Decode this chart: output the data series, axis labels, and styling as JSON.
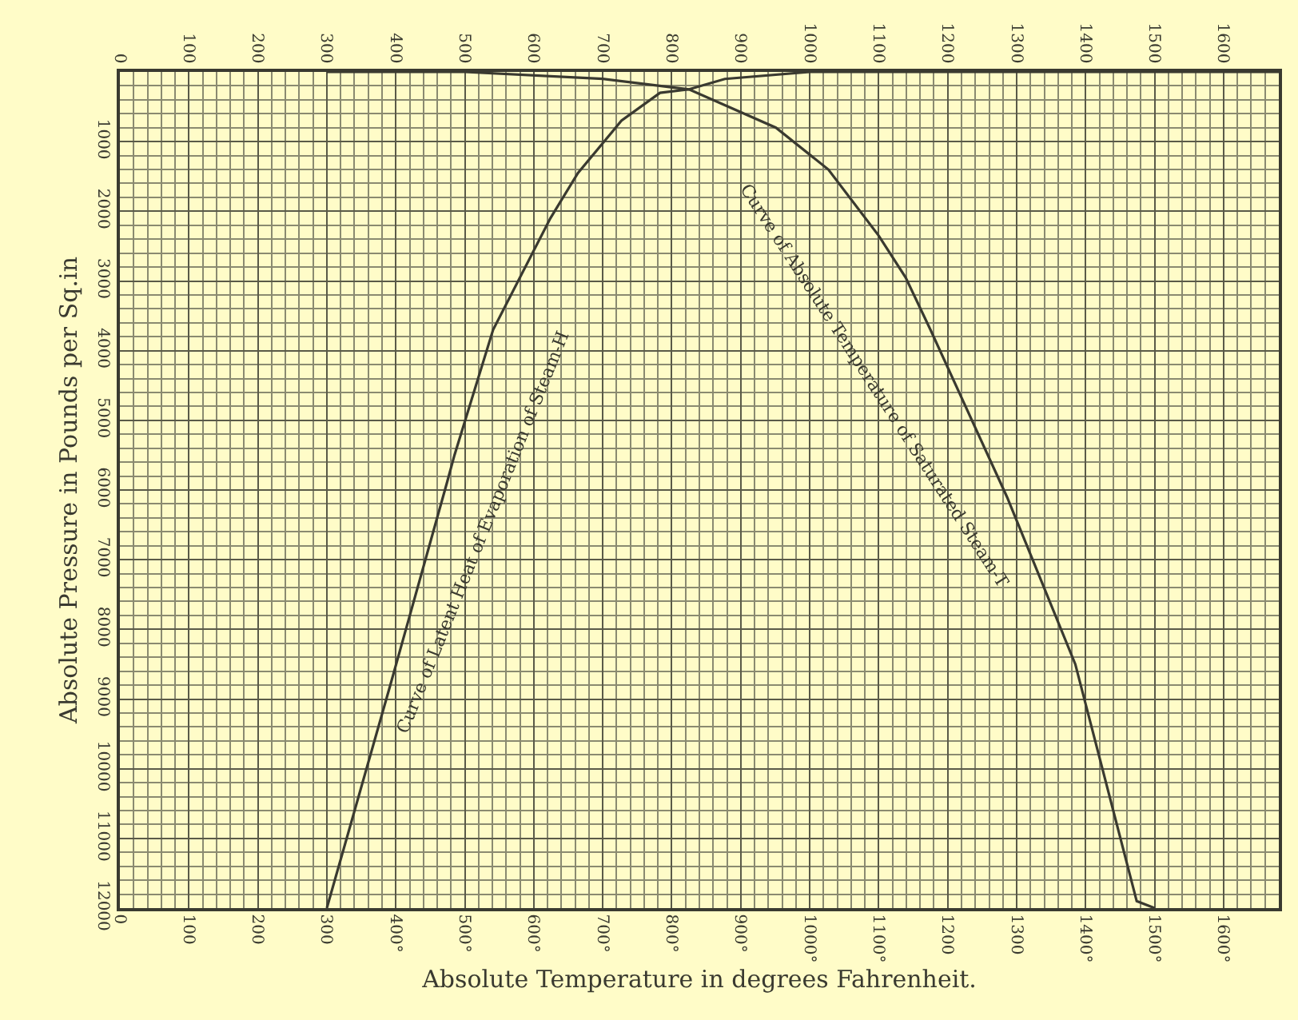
{
  "chart_data": {
    "type": "line",
    "xlabel": "Absolute Temperature in degrees Fahrenheit.",
    "ylabel": "Absolute Pressure in Pounds per Sq.in",
    "xlim": [
      0,
      1680
    ],
    "ylim": [
      12000,
      0
    ],
    "xticks": [
      {
        "value": 0,
        "label": "0"
      },
      100,
      200,
      300,
      {
        "value": 400,
        "label": "400°"
      },
      {
        "value": 500,
        "label": "500°"
      },
      {
        "value": 600,
        "label": "600°"
      },
      {
        "value": 700,
        "label": "700°"
      },
      {
        "value": 800,
        "label": "800°"
      },
      {
        "value": 900,
        "label": "900°"
      },
      {
        "value": 1000,
        "label": "1000°"
      },
      {
        "value": 1100,
        "label": "1100°"
      },
      1200,
      1300,
      {
        "value": 1400,
        "label": "1400°"
      },
      {
        "value": 1500,
        "label": "1500°"
      },
      {
        "value": 1600,
        "label": "1600°"
      }
    ],
    "x2lim": [
      0,
      1680
    ],
    "x2ticks": [
      0,
      100,
      200,
      300,
      400,
      500,
      600,
      700,
      800,
      900,
      1000,
      1100,
      1200,
      1300,
      1400,
      1500,
      1600
    ],
    "yticks": [
      1000,
      2000,
      3000,
      4000,
      5000,
      6000,
      7000,
      8000,
      9000,
      10000,
      11000,
      12000
    ],
    "grid": true,
    "marker": "none",
    "line_style": "solid",
    "series": [
      {
        "color": "#3a3a30",
        "x": [
          300,
          392,
          474,
          485,
          541,
          624,
          664,
          727,
          783,
          825,
          877,
          1000,
          1680
        ],
        "values": [
          12000,
          8800,
          5900,
          5500,
          3700,
          2100,
          1450,
          700,
          300,
          250,
          100,
          0,
          0
        ]
      },
      {
        "color": "#3a3a30",
        "x": [
          300,
          500,
          700,
          825,
          951,
          1027,
          1100,
          1139,
          1175,
          1286,
          1385,
          1474,
          1500
        ],
        "values": [
          0,
          0,
          100,
          250,
          800,
          1400,
          2350,
          2950,
          3700,
          6100,
          8500,
          11900,
          12000
        ]
      }
    ],
    "annotations": [
      "Curve of Latent Heat of Evaporation of Steam-H",
      "Curve of Absolute Temperature of Saturated Steam-T"
    ]
  }
}
